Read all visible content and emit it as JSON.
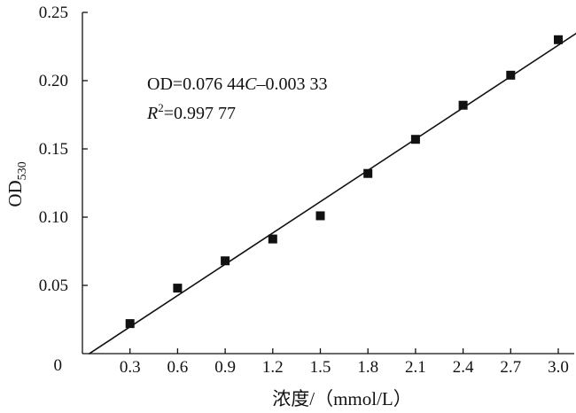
{
  "chart_data": {
    "type": "scatter",
    "title": "",
    "xlabel": "浓度/（mmol/L）",
    "ylabel": {
      "main": "OD",
      "sub": "530"
    },
    "xlim": [
      0,
      3.0
    ],
    "ylim": [
      0,
      0.25
    ],
    "x_ticks": [
      0.3,
      0.6,
      0.9,
      1.2,
      1.5,
      1.8,
      2.1,
      2.4,
      2.7,
      3.0
    ],
    "x_tick_labels": [
      "0.3",
      "0.6",
      "0.9",
      "1.2",
      "1.5",
      "1.8",
      "2.1",
      "2.4",
      "2.7",
      "3.0"
    ],
    "y_ticks": [
      0.05,
      0.1,
      0.15,
      0.2,
      0.25
    ],
    "y_tick_labels": [
      "0.05",
      "0.10",
      "0.15",
      "0.20",
      "0.25"
    ],
    "origin_label": "0",
    "grid": false,
    "series": [
      {
        "x": [
          0.3,
          0.6,
          0.9,
          1.2,
          1.5,
          1.8,
          2.1,
          2.4,
          2.7,
          3.0
        ],
        "y": [
          0.022,
          0.048,
          0.068,
          0.084,
          0.101,
          0.132,
          0.157,
          0.182,
          0.204,
          0.23
        ],
        "marker": "square",
        "color": "#111111"
      }
    ],
    "fit": {
      "slope": 0.07644,
      "intercept": -0.00333,
      "x_range": [
        0.04,
        3.2
      ],
      "color": "#111111"
    },
    "annotations": {
      "eq_prefix": "OD=0.076 44",
      "eq_var": "C",
      "eq_suffix": "–0.003 33",
      "r2_var": "R",
      "r2_sup": "2",
      "r2_value": "=0.997 77"
    }
  }
}
